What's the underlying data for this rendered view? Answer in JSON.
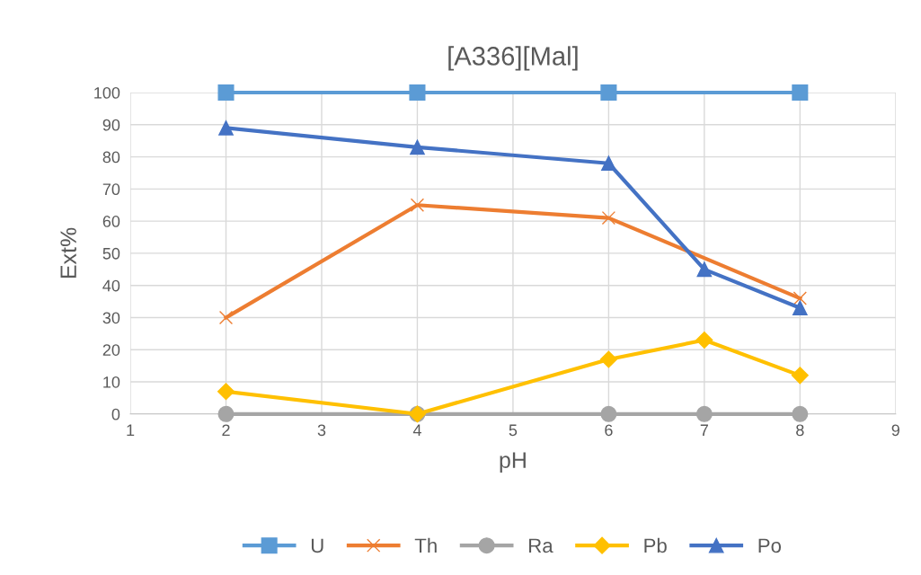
{
  "chart_data": {
    "type": "line",
    "title": "[A336][Mal]",
    "xlabel": "pH",
    "ylabel": "Ext%",
    "xlim": [
      1,
      9
    ],
    "xticks": [
      1,
      2,
      3,
      4,
      5,
      6,
      7,
      8,
      9
    ],
    "ylim": [
      0,
      100
    ],
    "yticks": [
      0,
      10,
      20,
      30,
      40,
      50,
      60,
      70,
      80,
      90,
      100
    ],
    "grid": true,
    "legend": "bottom",
    "series": [
      {
        "name": "U",
        "color": "#5b9bd5",
        "marker": "square",
        "x": [
          2,
          4,
          6,
          8
        ],
        "values": [
          100,
          100,
          100,
          100
        ]
      },
      {
        "name": "Th",
        "color": "#ed7d31",
        "marker": "cross",
        "x": [
          2,
          4,
          6,
          8
        ],
        "values": [
          30,
          65,
          61,
          36
        ]
      },
      {
        "name": "Ra",
        "color": "#a5a5a5",
        "marker": "circle",
        "x": [
          2,
          4,
          6,
          7,
          8
        ],
        "values": [
          0,
          0,
          0,
          0,
          0
        ]
      },
      {
        "name": "Pb",
        "color": "#ffc000",
        "marker": "diamond",
        "x": [
          2,
          4,
          6,
          7,
          8
        ],
        "values": [
          7,
          0,
          17,
          23,
          12
        ]
      },
      {
        "name": "Po",
        "color": "#4472c4",
        "marker": "triangle",
        "x": [
          2,
          4,
          6,
          7,
          8
        ],
        "values": [
          89,
          83,
          78,
          45,
          33
        ]
      }
    ]
  }
}
